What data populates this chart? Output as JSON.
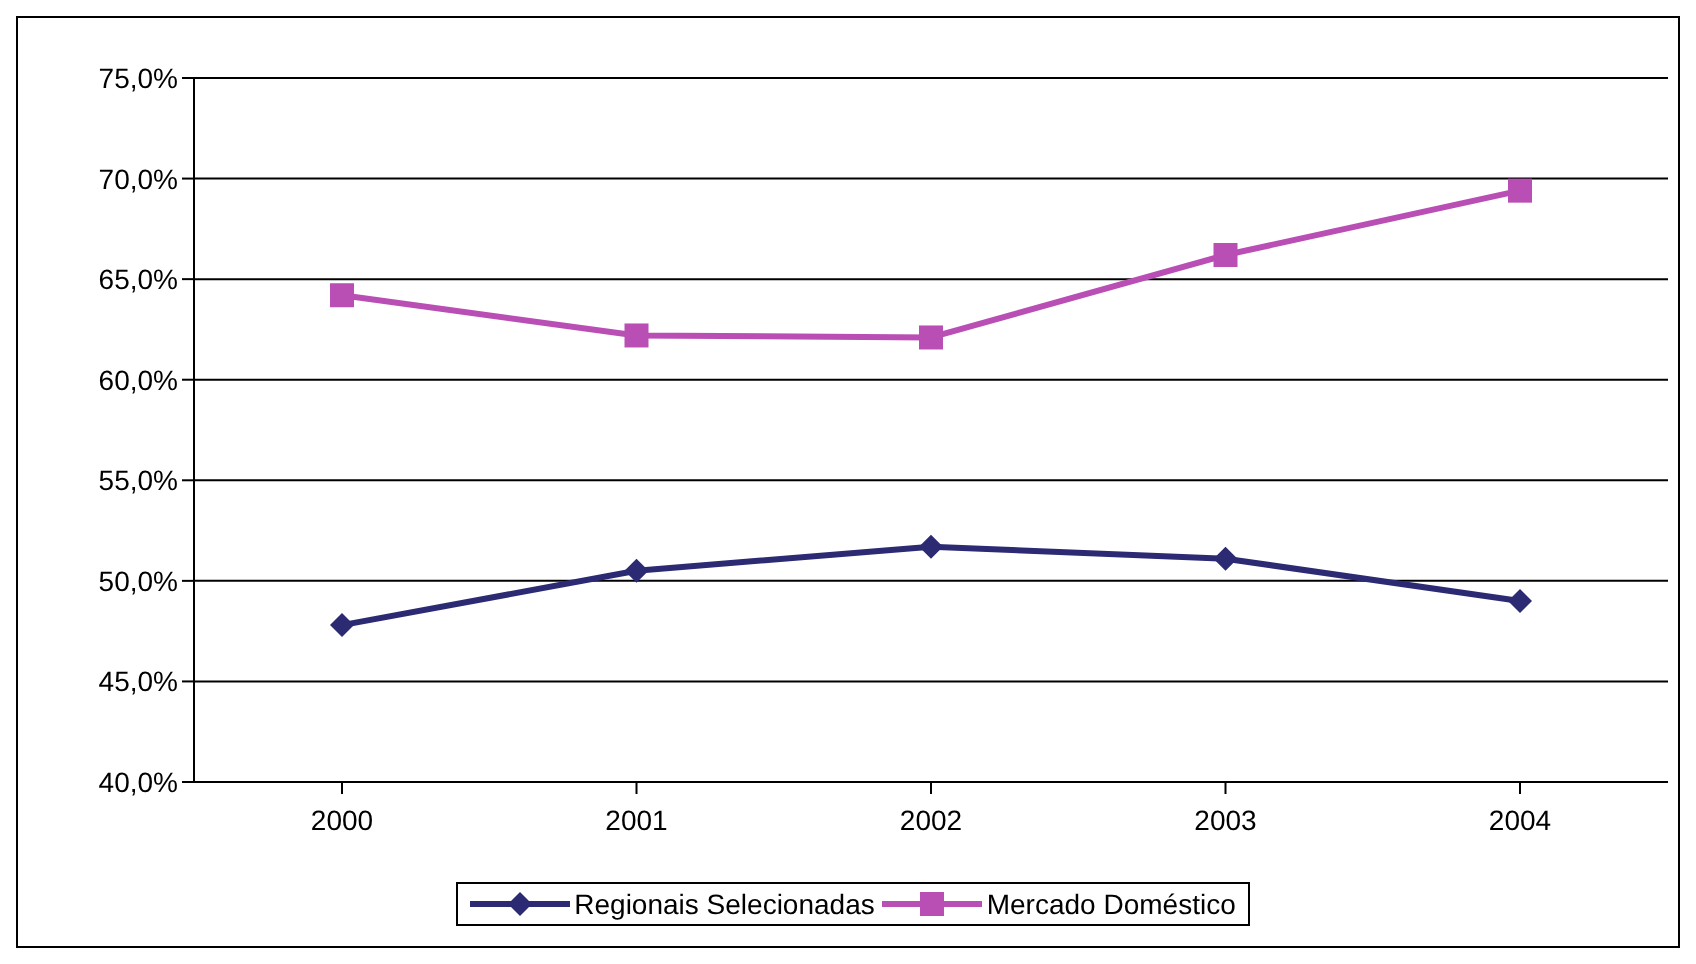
{
  "chart_data": {
    "type": "line",
    "categories": [
      "2000",
      "2001",
      "2002",
      "2003",
      "2004"
    ],
    "series": [
      {
        "name": "Regionais Selecionadas",
        "color": "#2b2a72",
        "marker": "diamond",
        "values": [
          47.8,
          50.5,
          51.7,
          51.1,
          49.0
        ]
      },
      {
        "name": "Mercado Doméstico",
        "color": "#b94fb5",
        "marker": "square",
        "values": [
          64.2,
          62.2,
          62.1,
          66.2,
          69.4
        ]
      }
    ],
    "ylim": [
      40,
      75
    ],
    "yticks": [
      {
        "value": 40,
        "label": "40,0%"
      },
      {
        "value": 45,
        "label": "45,0%"
      },
      {
        "value": 50,
        "label": "50,0%"
      },
      {
        "value": 55,
        "label": "55,0%"
      },
      {
        "value": 60,
        "label": "60,0%"
      },
      {
        "value": 65,
        "label": "65,0%"
      },
      {
        "value": 70,
        "label": "70,0%"
      },
      {
        "value": 75,
        "label": "75,0%"
      }
    ],
    "grid": "y",
    "legend": "bottom",
    "line_style": "solid"
  }
}
